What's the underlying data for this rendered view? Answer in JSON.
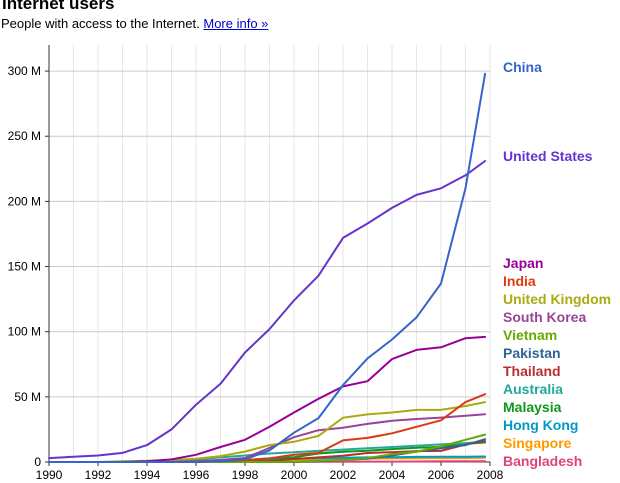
{
  "header": {
    "title": "Internet users",
    "subtitle": "People with access to the Internet.",
    "more_info": "More info »"
  },
  "chart_data": {
    "type": "line",
    "title": "Internet users",
    "subtitle": "People with access to the Internet.",
    "xlabel": "",
    "ylabel": "",
    "xlim": [
      1990,
      2008
    ],
    "ylim": [
      0,
      320
    ],
    "grid": true,
    "legend": "right (labels at line ends)",
    "x_ticks": [
      1990,
      1992,
      1994,
      1996,
      1998,
      2000,
      2002,
      2004,
      2006,
      2008
    ],
    "x_tick_labels": [
      "1990",
      "1992",
      "1994",
      "1996",
      "1998",
      "2000",
      "2002",
      "2004",
      "2006",
      "2008"
    ],
    "y_ticks": [
      0,
      50,
      100,
      150,
      200,
      250,
      300
    ],
    "y_tick_labels": [
      "0",
      "50 M",
      "100 M",
      "150 M",
      "200 M",
      "250 M",
      "300 M"
    ],
    "x": [
      1990,
      1991,
      1992,
      1993,
      1994,
      1995,
      1996,
      1997,
      1998,
      1999,
      2000,
      2001,
      2002,
      2003,
      2004,
      2005,
      2006,
      2007,
      2007.8
    ],
    "series": [
      {
        "name": "China",
        "color": "#3366cc",
        "values": [
          0,
          0,
          0,
          0,
          0,
          0,
          0.2,
          0.6,
          2.1,
          8.9,
          22.5,
          33.7,
          59,
          79.5,
          94,
          111,
          137,
          210,
          298
        ]
      },
      {
        "name": "United States",
        "color": "#6633cc",
        "values": [
          3,
          4,
          5,
          7,
          13,
          25,
          44,
          60,
          84,
          102,
          124,
          143,
          172,
          183,
          195,
          205,
          210,
          220,
          231
        ]
      },
      {
        "name": "Japan",
        "color": "#990099",
        "values": [
          0,
          0,
          0,
          0,
          0.5,
          2,
          5.5,
          11.5,
          17,
          27,
          38,
          48.5,
          58,
          62,
          79,
          86,
          88,
          95,
          96
        ]
      },
      {
        "name": "India",
        "color": "#dc3912",
        "values": [
          0,
          0,
          0,
          0,
          0,
          0,
          0,
          0.7,
          1.4,
          2.8,
          5.6,
          7,
          16.6,
          18.5,
          22,
          27,
          32,
          46,
          52
        ]
      },
      {
        "name": "United Kingdom",
        "color": "#aaaa11",
        "values": [
          0,
          0,
          0,
          0.5,
          1,
          1.5,
          2.5,
          4.5,
          8,
          13,
          15.5,
          20,
          34,
          36.5,
          38,
          40,
          40,
          43,
          46
        ]
      },
      {
        "name": "South Korea",
        "color": "#994499",
        "values": [
          0,
          0,
          0,
          0,
          0,
          0.4,
          0.7,
          1.6,
          3.1,
          10.8,
          19,
          24.4,
          26.3,
          29.2,
          31.6,
          33,
          34.1,
          35.5,
          36.7
        ]
      },
      {
        "name": "Vietnam",
        "color": "#66aa00",
        "values": [
          0,
          0,
          0,
          0,
          0,
          0,
          0,
          0,
          0,
          0,
          0.2,
          1,
          1.5,
          3,
          6,
          8,
          12,
          17,
          21
        ]
      },
      {
        "name": "Pakistan",
        "color": "#316395",
        "values": [
          0,
          0,
          0,
          0,
          0,
          0,
          0,
          0,
          0,
          0,
          0.1,
          0.5,
          1.5,
          2.5,
          5,
          8,
          10.5,
          13,
          17.5
        ]
      },
      {
        "name": "Thailand",
        "color": "#b82e2e",
        "values": [
          0,
          0,
          0,
          0,
          0,
          0,
          0,
          0,
          0,
          0.7,
          2.3,
          3.5,
          4.8,
          6.9,
          7.5,
          8.4,
          8.5,
          13.4,
          16
        ]
      },
      {
        "name": "Australia",
        "color": "#22aa99",
        "values": [
          0,
          0,
          0,
          0,
          0.5,
          1,
          2,
          3.5,
          5,
          6.5,
          7.5,
          8.5,
          9.5,
          10.5,
          11.5,
          12.5,
          13.5,
          14.5,
          15.5
        ]
      },
      {
        "name": "Malaysia",
        "color": "#109618",
        "values": [
          0,
          0,
          0,
          0,
          0,
          0,
          0.2,
          0.5,
          1.5,
          2.8,
          3.7,
          6.5,
          7.8,
          8.7,
          9.9,
          11,
          11.6,
          14,
          15
        ]
      },
      {
        "name": "Hong Kong",
        "color": "#0099c6",
        "values": [
          0,
          0,
          0,
          0,
          0,
          0,
          0.5,
          1,
          1.5,
          2,
          2.5,
          3,
          3.2,
          3.5,
          3.7,
          3.9,
          4,
          4.1,
          4.2
        ]
      },
      {
        "name": "Singapore",
        "color": "#ff9900",
        "values": [
          0,
          0,
          0,
          0,
          0,
          0,
          0.2,
          0.5,
          1,
          1.5,
          1.8,
          2.2,
          2.5,
          2.6,
          2.8,
          2.9,
          3,
          3.1,
          3.2
        ]
      },
      {
        "name": "Bangladesh",
        "color": "#dd4477",
        "values": [
          0,
          0,
          0,
          0,
          0,
          0,
          0,
          0,
          0,
          0,
          0.1,
          0.2,
          0.2,
          0.3,
          0.3,
          0.4,
          0.5,
          0.5,
          0.5
        ]
      }
    ]
  }
}
